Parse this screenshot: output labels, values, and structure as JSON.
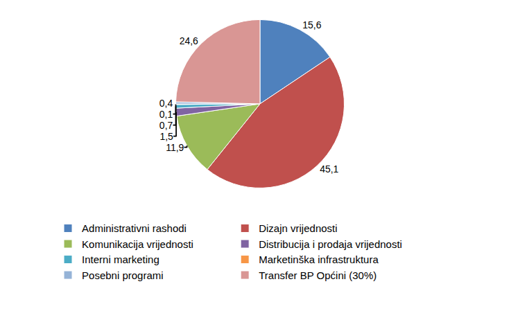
{
  "chart_data": {
    "type": "pie",
    "categories": [
      "Administrativni rashodi",
      "Dizajn vrijednosti",
      "Komunikacija vrijednosti",
      "Distribucija i prodaja vrijednosti",
      "Interni marketing",
      "Marketinška infrastruktura",
      "Posebni programi",
      "Transfer BP Općini (30%)"
    ],
    "values": [
      15.6,
      45.1,
      11.9,
      1.5,
      0.7,
      0.1,
      0.4,
      24.6
    ],
    "value_labels": [
      "15,6",
      "45,1",
      "11,9",
      "1,5",
      "0,7",
      "0,1",
      "0,4",
      "24,6"
    ],
    "colors": [
      "#4f81bd",
      "#c0504d",
      "#9bbb59",
      "#8064a2",
      "#4bacc6",
      "#f79646",
      "#95b3d7",
      "#d99694"
    ],
    "data_labels": true,
    "legend": "bottom"
  }
}
